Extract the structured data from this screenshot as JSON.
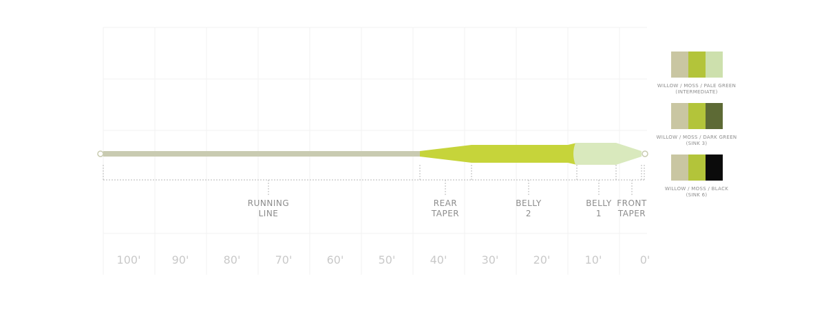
{
  "sections": [
    {
      "label_lines": [
        "RUNNING",
        "LINE"
      ]
    },
    {
      "label_lines": [
        "REAR",
        "TAPER"
      ]
    },
    {
      "label_lines": [
        "BELLY",
        "2"
      ]
    },
    {
      "label_lines": [
        "BELLY",
        "1"
      ]
    },
    {
      "label_lines": [
        "FRONT",
        "TAPER"
      ]
    }
  ],
  "distances": [
    "100'",
    "90'",
    "80'",
    "70'",
    "60'",
    "50'",
    "40'",
    "30'",
    "20'",
    "10'",
    "0'"
  ],
  "swatches": [
    {
      "caption_lines": [
        "WILLOW / MOSS / PALE GREEN",
        "(INTERMEDIATE)"
      ]
    },
    {
      "caption_lines": [
        "WILLOW / MOSS / DARK GREEN",
        "(SINK 3)"
      ]
    },
    {
      "caption_lines": [
        "WILLOW / MOSS / BLACK",
        "(SINK 6)"
      ]
    }
  ]
}
